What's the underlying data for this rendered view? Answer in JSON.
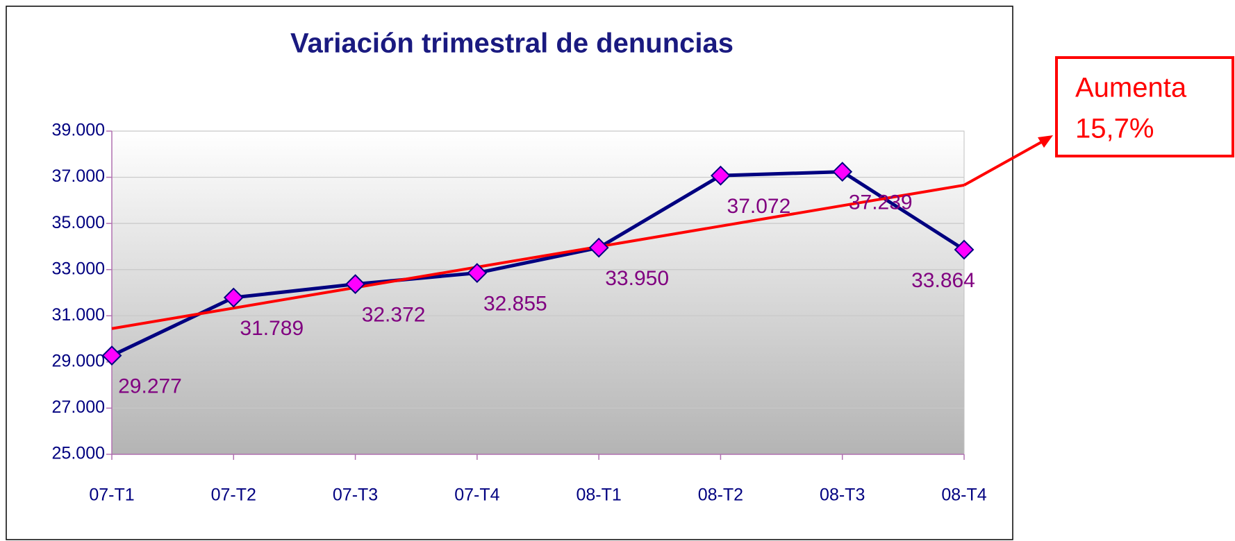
{
  "chart_data": {
    "type": "line",
    "title": "Variación trimestral de denuncias",
    "categories": [
      "07-T1",
      "07-T2",
      "07-T3",
      "07-T4",
      "08-T1",
      "08-T2",
      "08-T3",
      "08-T4"
    ],
    "series": [
      {
        "color": "#000080",
        "marker_color": "#ff00ff",
        "values": [
          29277,
          31789,
          32372,
          32855,
          33950,
          37072,
          37239,
          33864
        ],
        "value_labels": [
          "29.277",
          "31.789",
          "32.372",
          "32.855",
          "33.950",
          "37.072",
          "37.239",
          "33.864"
        ]
      }
    ],
    "trendline": "linear",
    "trendline_color": "#ff0000",
    "ylim": [
      25000,
      39000
    ],
    "yticks": [
      {
        "value": 25000,
        "label": "25.000"
      },
      {
        "value": 27000,
        "label": "27.000"
      },
      {
        "value": 29000,
        "label": "29.000"
      },
      {
        "value": 31000,
        "label": "31.000"
      },
      {
        "value": 33000,
        "label": "33.000"
      },
      {
        "value": 35000,
        "label": "35.000"
      },
      {
        "value": 37000,
        "label": "37.000"
      },
      {
        "value": 39000,
        "label": "39.000"
      }
    ],
    "grid": true,
    "annotation": {
      "lines": [
        "Aumenta",
        "15,7%"
      ],
      "color": "#ff0000"
    }
  }
}
